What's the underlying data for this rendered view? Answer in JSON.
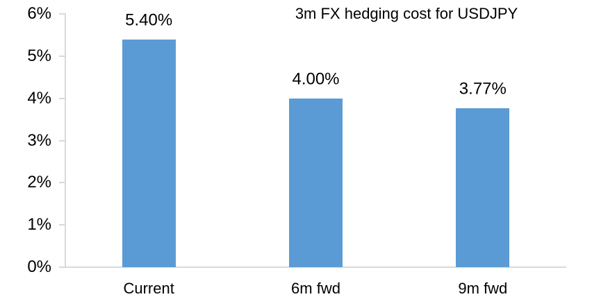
{
  "chart_data": {
    "type": "bar",
    "title": "3m FX hedging cost for USDJPY",
    "categories": [
      "Current",
      "6m fwd",
      "9m fwd"
    ],
    "values": [
      5.4,
      4.0,
      3.77
    ],
    "data_labels": [
      "5.40%",
      "4.00%",
      "3.77%"
    ],
    "xlabel": "",
    "ylabel": "",
    "ylim": [
      0,
      6
    ],
    "ytick_step": 1,
    "ytick_labels": [
      "0%",
      "1%",
      "2%",
      "3%",
      "4%",
      "5%",
      "6%"
    ],
    "grid": false,
    "legend": "none",
    "colors": {
      "bar_fill": "#5B9BD5",
      "axis_line": "#D9D9D9",
      "text": "#000000",
      "background": "#FFFFFF"
    }
  }
}
